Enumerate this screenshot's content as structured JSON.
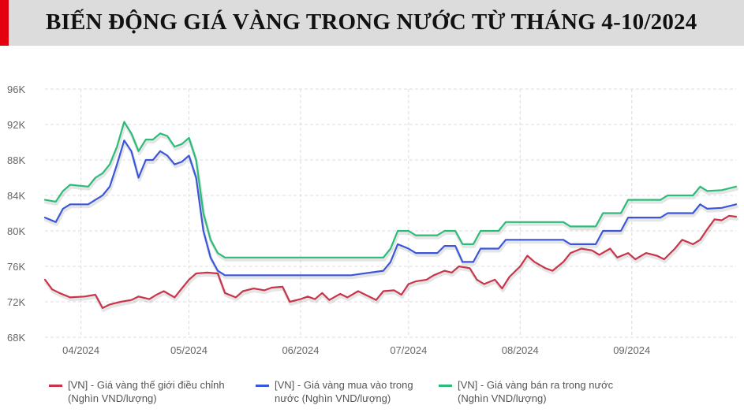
{
  "title": "BIẾN ĐỘNG GIÁ VÀNG TRONG NƯỚC TỪ THÁNG 4-10/2024",
  "colors": {
    "accent": "#e3000f",
    "title_bg": "#dcdcdc"
  },
  "chart_data": {
    "type": "line",
    "title": "BIẾN ĐỘNG GIÁ VÀNG TRONG NƯỚC TỪ THÁNG 4-10/2024",
    "xlabel": "",
    "ylabel": "",
    "x_ticks": [
      "04/2024",
      "05/2024",
      "06/2024",
      "07/2024",
      "08/2024",
      "09/2024"
    ],
    "x_tick_dates": [
      "2024-04-01",
      "2024-05-01",
      "2024-06-01",
      "2024-07-01",
      "2024-08-01",
      "2024-09-01"
    ],
    "xlim": [
      "2024-03-22",
      "2024-09-30"
    ],
    "y_ticks": [
      "68K",
      "72K",
      "76K",
      "80K",
      "84K",
      "88K",
      "92K",
      "96K"
    ],
    "ylim": [
      68,
      96
    ],
    "grid": true,
    "legend_position": "bottom",
    "series": [
      {
        "name": "[VN] - Giá vàng thế giới điều chỉnh\n(Nghìn VND/lượng)",
        "color": "#c9344b",
        "points": [
          [
            "2024-03-22",
            74.5
          ],
          [
            "2024-03-24",
            73.4
          ],
          [
            "2024-03-26",
            73.0
          ],
          [
            "2024-03-29",
            72.5
          ],
          [
            "2024-04-02",
            72.6
          ],
          [
            "2024-04-05",
            72.8
          ],
          [
            "2024-04-07",
            71.3
          ],
          [
            "2024-04-09",
            71.7
          ],
          [
            "2024-04-12",
            72.0
          ],
          [
            "2024-04-15",
            72.2
          ],
          [
            "2024-04-17",
            72.6
          ],
          [
            "2024-04-20",
            72.3
          ],
          [
            "2024-04-22",
            72.8
          ],
          [
            "2024-04-24",
            73.2
          ],
          [
            "2024-04-27",
            72.5
          ],
          [
            "2024-04-29",
            73.5
          ],
          [
            "2024-05-01",
            74.5
          ],
          [
            "2024-05-03",
            75.2
          ],
          [
            "2024-05-06",
            75.3
          ],
          [
            "2024-05-09",
            75.2
          ],
          [
            "2024-05-11",
            73.0
          ],
          [
            "2024-05-14",
            72.5
          ],
          [
            "2024-05-16",
            73.2
          ],
          [
            "2024-05-19",
            73.5
          ],
          [
            "2024-05-22",
            73.3
          ],
          [
            "2024-05-24",
            73.6
          ],
          [
            "2024-05-27",
            73.7
          ],
          [
            "2024-05-29",
            72.0
          ],
          [
            "2024-06-01",
            72.3
          ],
          [
            "2024-06-03",
            72.6
          ],
          [
            "2024-06-05",
            72.3
          ],
          [
            "2024-06-07",
            73.0
          ],
          [
            "2024-06-09",
            72.2
          ],
          [
            "2024-06-12",
            72.9
          ],
          [
            "2024-06-14",
            72.5
          ],
          [
            "2024-06-17",
            73.2
          ],
          [
            "2024-06-19",
            72.8
          ],
          [
            "2024-06-22",
            72.2
          ],
          [
            "2024-06-24",
            73.2
          ],
          [
            "2024-06-27",
            73.3
          ],
          [
            "2024-06-29",
            72.8
          ],
          [
            "2024-07-01",
            74.0
          ],
          [
            "2024-07-03",
            74.3
          ],
          [
            "2024-07-06",
            74.5
          ],
          [
            "2024-07-08",
            75.0
          ],
          [
            "2024-07-11",
            75.5
          ],
          [
            "2024-07-13",
            75.3
          ],
          [
            "2024-07-15",
            76.0
          ],
          [
            "2024-07-18",
            75.8
          ],
          [
            "2024-07-20",
            74.5
          ],
          [
            "2024-07-22",
            74.0
          ],
          [
            "2024-07-25",
            74.5
          ],
          [
            "2024-07-27",
            73.5
          ],
          [
            "2024-07-29",
            74.8
          ],
          [
            "2024-08-01",
            76.0
          ],
          [
            "2024-08-03",
            77.2
          ],
          [
            "2024-08-05",
            76.5
          ],
          [
            "2024-08-08",
            75.8
          ],
          [
            "2024-08-10",
            75.5
          ],
          [
            "2024-08-13",
            76.5
          ],
          [
            "2024-08-15",
            77.5
          ],
          [
            "2024-08-18",
            78.0
          ],
          [
            "2024-08-21",
            77.8
          ],
          [
            "2024-08-23",
            77.3
          ],
          [
            "2024-08-26",
            78.0
          ],
          [
            "2024-08-28",
            77.0
          ],
          [
            "2024-08-31",
            77.5
          ],
          [
            "2024-09-02",
            76.8
          ],
          [
            "2024-09-05",
            77.5
          ],
          [
            "2024-09-08",
            77.2
          ],
          [
            "2024-09-10",
            76.8
          ],
          [
            "2024-09-13",
            78.0
          ],
          [
            "2024-09-15",
            79.0
          ],
          [
            "2024-09-18",
            78.5
          ],
          [
            "2024-09-20",
            79.0
          ],
          [
            "2024-09-22",
            80.2
          ],
          [
            "2024-09-24",
            81.3
          ],
          [
            "2024-09-26",
            81.2
          ],
          [
            "2024-09-28",
            81.7
          ],
          [
            "2024-09-30",
            81.6
          ]
        ]
      },
      {
        "name": "[VN] - Giá vàng mua vào trong\nnước (Nghìn VND/lượng)",
        "color": "#3b57d8",
        "points": [
          [
            "2024-03-22",
            81.5
          ],
          [
            "2024-03-25",
            81.0
          ],
          [
            "2024-03-27",
            82.5
          ],
          [
            "2024-03-29",
            83.0
          ],
          [
            "2024-04-03",
            83.0
          ],
          [
            "2024-04-05",
            83.5
          ],
          [
            "2024-04-07",
            84.0
          ],
          [
            "2024-04-09",
            85.0
          ],
          [
            "2024-04-11",
            87.5
          ],
          [
            "2024-04-13",
            90.2
          ],
          [
            "2024-04-15",
            89.0
          ],
          [
            "2024-04-17",
            86.0
          ],
          [
            "2024-04-19",
            88.0
          ],
          [
            "2024-04-21",
            88.0
          ],
          [
            "2024-04-23",
            89.0
          ],
          [
            "2024-04-25",
            88.5
          ],
          [
            "2024-04-27",
            87.5
          ],
          [
            "2024-04-29",
            87.8
          ],
          [
            "2024-05-01",
            88.5
          ],
          [
            "2024-05-03",
            86.0
          ],
          [
            "2024-05-05",
            80.0
          ],
          [
            "2024-05-07",
            77.0
          ],
          [
            "2024-05-09",
            75.5
          ],
          [
            "2024-05-11",
            75.0
          ],
          [
            "2024-05-20",
            75.0
          ],
          [
            "2024-06-01",
            75.0
          ],
          [
            "2024-06-15",
            75.0
          ],
          [
            "2024-06-24",
            75.5
          ],
          [
            "2024-06-26",
            76.5
          ],
          [
            "2024-06-28",
            78.5
          ],
          [
            "2024-07-01",
            78.0
          ],
          [
            "2024-07-03",
            77.5
          ],
          [
            "2024-07-09",
            77.5
          ],
          [
            "2024-07-11",
            78.3
          ],
          [
            "2024-07-14",
            78.3
          ],
          [
            "2024-07-16",
            76.5
          ],
          [
            "2024-07-19",
            76.5
          ],
          [
            "2024-07-21",
            78.0
          ],
          [
            "2024-07-26",
            78.0
          ],
          [
            "2024-07-28",
            79.0
          ],
          [
            "2024-08-06",
            79.0
          ],
          [
            "2024-08-13",
            79.0
          ],
          [
            "2024-08-15",
            78.5
          ],
          [
            "2024-08-22",
            78.5
          ],
          [
            "2024-08-24",
            80.0
          ],
          [
            "2024-08-29",
            80.0
          ],
          [
            "2024-08-31",
            81.5
          ],
          [
            "2024-09-09",
            81.5
          ],
          [
            "2024-09-11",
            82.0
          ],
          [
            "2024-09-18",
            82.0
          ],
          [
            "2024-09-20",
            83.0
          ],
          [
            "2024-09-22",
            82.5
          ],
          [
            "2024-09-26",
            82.6
          ],
          [
            "2024-09-30",
            83.0
          ]
        ]
      },
      {
        "name": "[VN] - Giá vàng bán ra trong nước\n(Nghìn VND/lượng)",
        "color": "#2dbb7a",
        "points": [
          [
            "2024-03-22",
            83.5
          ],
          [
            "2024-03-25",
            83.3
          ],
          [
            "2024-03-27",
            84.5
          ],
          [
            "2024-03-29",
            85.2
          ],
          [
            "2024-04-03",
            85.0
          ],
          [
            "2024-04-05",
            86.0
          ],
          [
            "2024-04-07",
            86.5
          ],
          [
            "2024-04-09",
            87.5
          ],
          [
            "2024-04-11",
            89.5
          ],
          [
            "2024-04-13",
            92.3
          ],
          [
            "2024-04-15",
            91.0
          ],
          [
            "2024-04-17",
            89.0
          ],
          [
            "2024-04-19",
            90.3
          ],
          [
            "2024-04-21",
            90.3
          ],
          [
            "2024-04-23",
            91.0
          ],
          [
            "2024-04-25",
            90.7
          ],
          [
            "2024-04-27",
            89.5
          ],
          [
            "2024-04-29",
            89.8
          ],
          [
            "2024-05-01",
            90.5
          ],
          [
            "2024-05-03",
            88.0
          ],
          [
            "2024-05-05",
            82.0
          ],
          [
            "2024-05-07",
            79.0
          ],
          [
            "2024-05-09",
            77.5
          ],
          [
            "2024-05-11",
            77.0
          ],
          [
            "2024-05-20",
            77.0
          ],
          [
            "2024-06-01",
            77.0
          ],
          [
            "2024-06-15",
            77.0
          ],
          [
            "2024-06-24",
            77.0
          ],
          [
            "2024-06-26",
            78.0
          ],
          [
            "2024-06-28",
            80.0
          ],
          [
            "2024-07-01",
            80.0
          ],
          [
            "2024-07-03",
            79.5
          ],
          [
            "2024-07-09",
            79.5
          ],
          [
            "2024-07-11",
            80.0
          ],
          [
            "2024-07-14",
            80.0
          ],
          [
            "2024-07-16",
            78.5
          ],
          [
            "2024-07-19",
            78.5
          ],
          [
            "2024-07-21",
            80.0
          ],
          [
            "2024-07-26",
            80.0
          ],
          [
            "2024-07-28",
            81.0
          ],
          [
            "2024-08-06",
            81.0
          ],
          [
            "2024-08-13",
            81.0
          ],
          [
            "2024-08-15",
            80.5
          ],
          [
            "2024-08-22",
            80.5
          ],
          [
            "2024-08-24",
            82.0
          ],
          [
            "2024-08-29",
            82.0
          ],
          [
            "2024-08-31",
            83.5
          ],
          [
            "2024-09-09",
            83.5
          ],
          [
            "2024-09-11",
            84.0
          ],
          [
            "2024-09-18",
            84.0
          ],
          [
            "2024-09-20",
            85.0
          ],
          [
            "2024-09-22",
            84.5
          ],
          [
            "2024-09-26",
            84.6
          ],
          [
            "2024-09-30",
            85.0
          ]
        ]
      }
    ]
  }
}
